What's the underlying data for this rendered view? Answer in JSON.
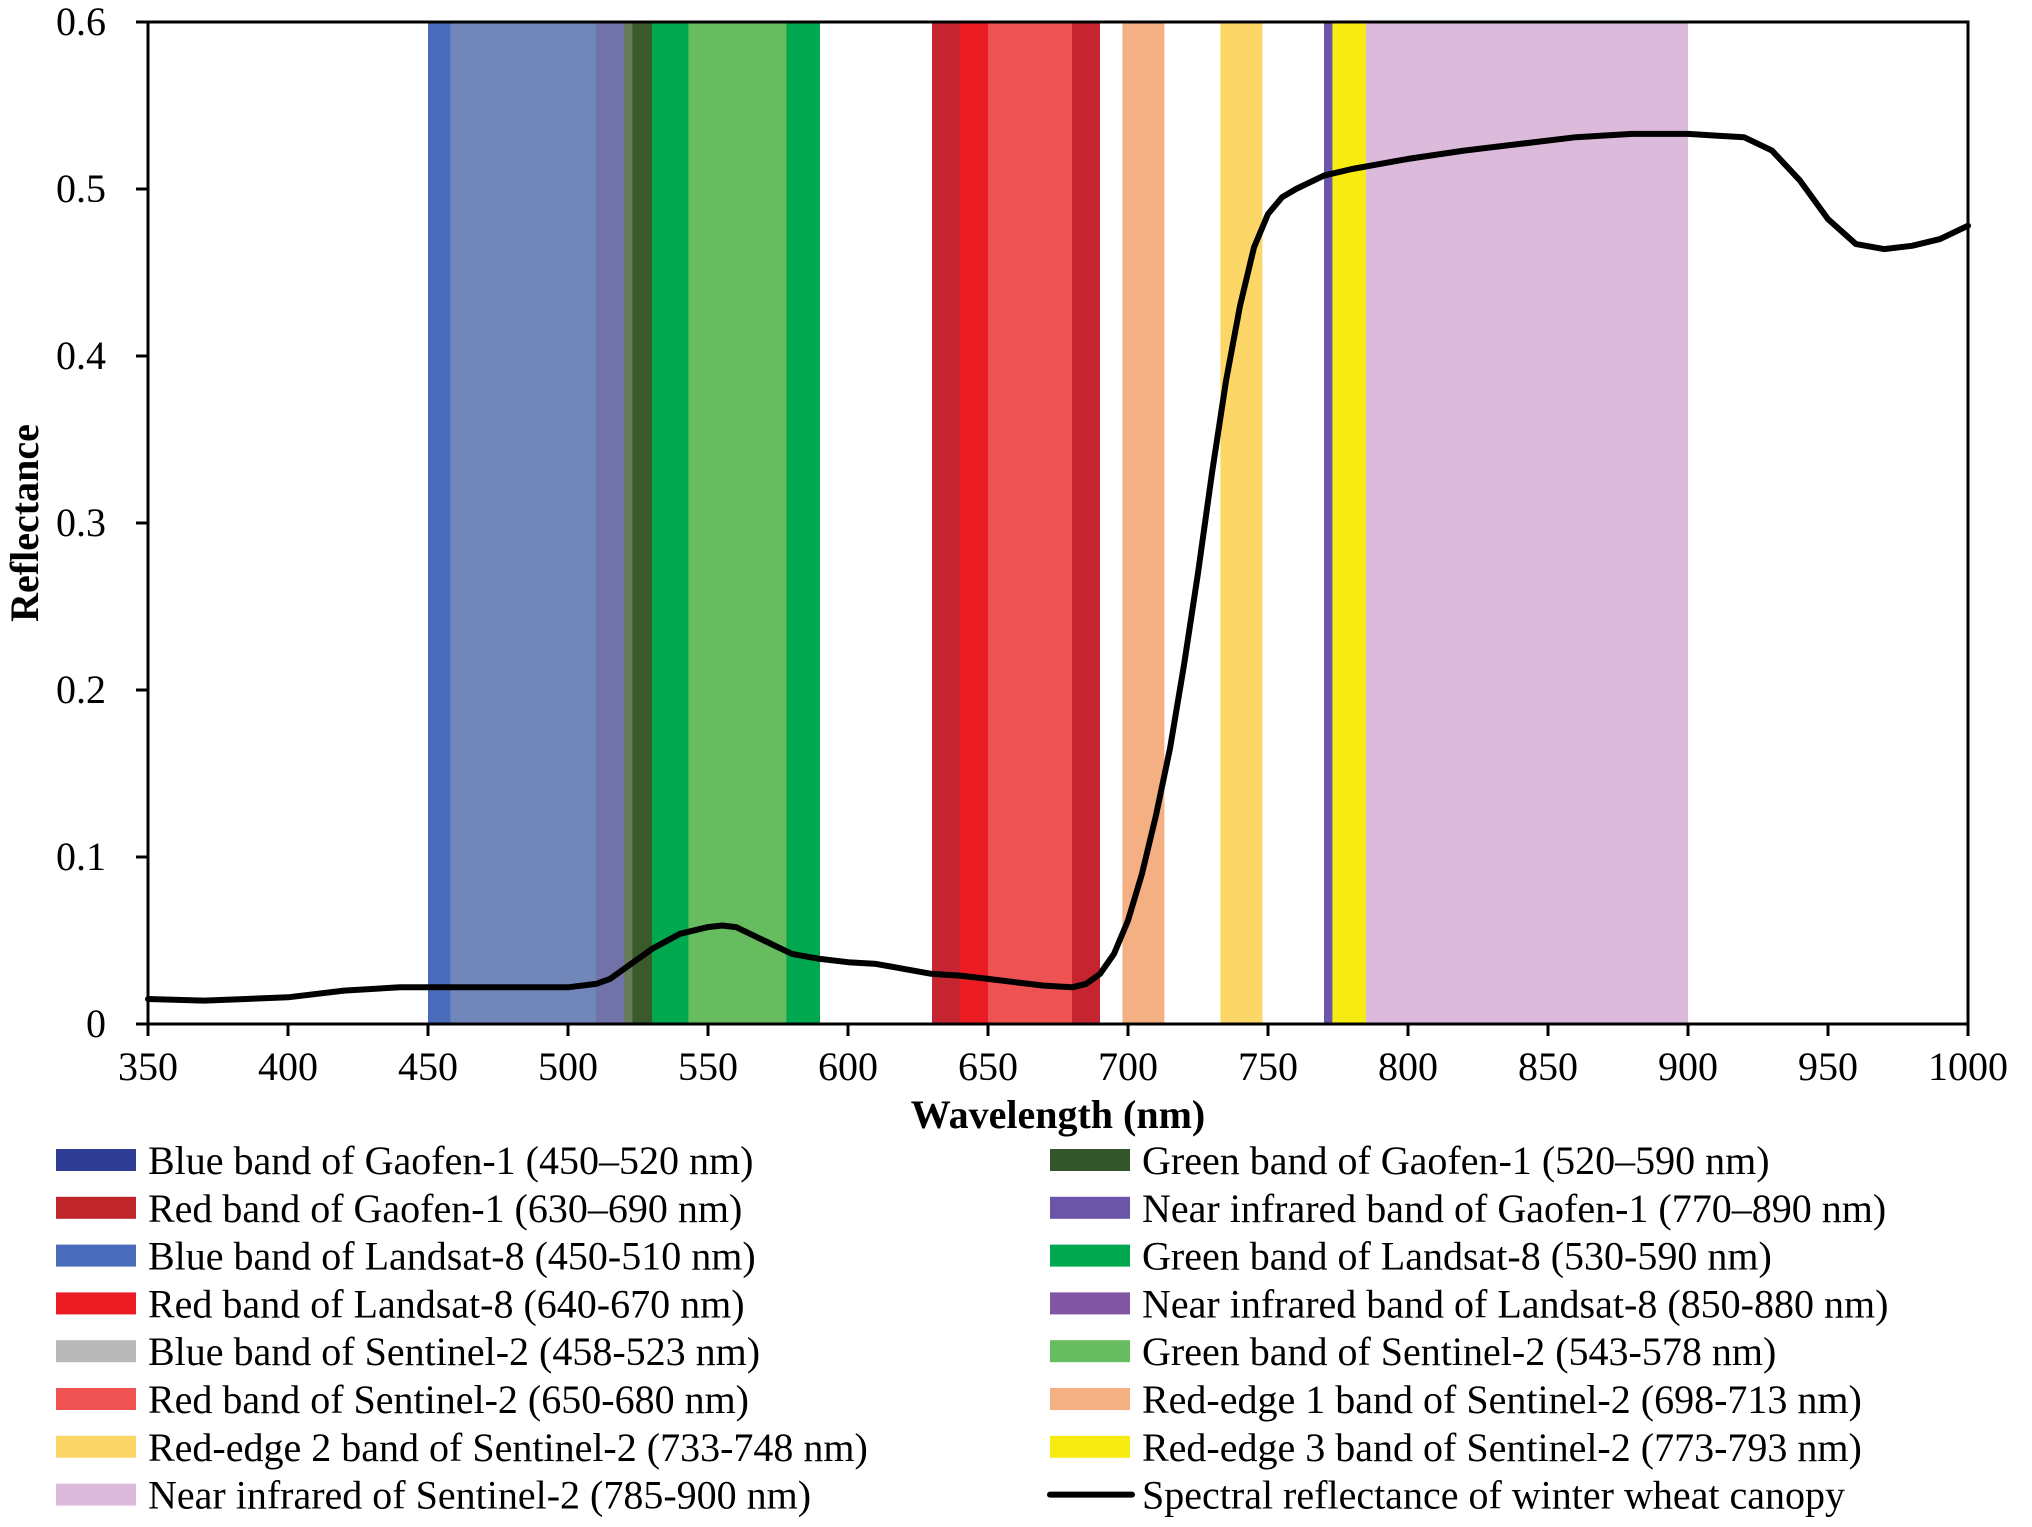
{
  "chart_data": {
    "type": "line",
    "title": "",
    "xlabel": "Wavelength (nm)",
    "ylabel": "Reflectance",
    "xlim": [
      350,
      1000
    ],
    "ylim": [
      0,
      0.6
    ],
    "x_ticks": [
      350,
      400,
      450,
      500,
      550,
      600,
      650,
      700,
      750,
      800,
      850,
      900,
      950,
      1000
    ],
    "y_ticks": [
      0,
      0.1,
      0.2,
      0.3,
      0.4,
      0.5,
      0.6
    ],
    "y_tick_labels": [
      "0",
      "0.1",
      "0.2",
      "0.3",
      "0.4",
      "0.5",
      "0.6"
    ],
    "grid": false,
    "bands": [
      {
        "range": [
          450,
          520
        ],
        "color": "#4a4d9e"
      },
      {
        "range": [
          520,
          590
        ],
        "color": "#3a5a2a"
      },
      {
        "range": [
          630,
          690
        ],
        "color": "#c42530"
      },
      {
        "range": [
          770,
          890
        ],
        "color": "#6a55a8"
      },
      {
        "range": [
          450,
          510
        ],
        "color": "#4a6cba"
      },
      {
        "range": [
          530,
          590
        ],
        "color": "#00a850"
      },
      {
        "range": [
          640,
          670
        ],
        "color": "#ec1c24"
      },
      {
        "range": [
          850,
          880
        ],
        "color": "#8255a5"
      },
      {
        "range": [
          458,
          523
        ],
        "color": "#b9b9b9",
        "opacity": 0.35
      },
      {
        "range": [
          543,
          578
        ],
        "color": "#66bc5e"
      },
      {
        "range": [
          650,
          680
        ],
        "color": "#ef5253"
      },
      {
        "range": [
          698,
          713
        ],
        "color": "#f4b083"
      },
      {
        "range": [
          733,
          748
        ],
        "color": "#fdd668"
      },
      {
        "range": [
          773,
          793
        ],
        "color": "#f7ec12"
      },
      {
        "range": [
          785,
          900
        ],
        "color": "#dcbadb"
      }
    ],
    "series": [
      {
        "name": "Spectral reflectance of winter wheat canopy",
        "color": "#000000",
        "x": [
          350,
          370,
          385,
          400,
          420,
          440,
          460,
          480,
          500,
          510,
          515,
          520,
          530,
          540,
          550,
          555,
          560,
          570,
          580,
          590,
          600,
          610,
          620,
          630,
          640,
          650,
          660,
          670,
          680,
          685,
          690,
          695,
          700,
          705,
          710,
          715,
          720,
          725,
          730,
          735,
          740,
          745,
          750,
          755,
          760,
          770,
          780,
          790,
          800,
          820,
          840,
          860,
          880,
          900,
          910,
          920,
          930,
          940,
          950,
          960,
          970,
          980,
          990,
          1000
        ],
        "y": [
          0.015,
          0.014,
          0.015,
          0.016,
          0.02,
          0.022,
          0.022,
          0.022,
          0.022,
          0.024,
          0.027,
          0.033,
          0.045,
          0.054,
          0.058,
          0.059,
          0.058,
          0.05,
          0.042,
          0.039,
          0.037,
          0.036,
          0.033,
          0.03,
          0.029,
          0.027,
          0.025,
          0.023,
          0.022,
          0.024,
          0.03,
          0.042,
          0.062,
          0.09,
          0.125,
          0.165,
          0.215,
          0.27,
          0.33,
          0.385,
          0.43,
          0.465,
          0.485,
          0.495,
          0.5,
          0.508,
          0.512,
          0.515,
          0.518,
          0.523,
          0.527,
          0.531,
          0.533,
          0.533,
          0.532,
          0.531,
          0.523,
          0.505,
          0.482,
          0.467,
          0.464,
          0.466,
          0.47,
          0.478
        ]
      }
    ],
    "legend": [
      {
        "label": "Blue band of Gaofen-1 (450–520 nm)",
        "color": "#2e3c93",
        "kind": "patch"
      },
      {
        "label": "Green band of Gaofen-1 (520–590 nm)",
        "color": "#34552a",
        "kind": "patch"
      },
      {
        "label": "Red band of Gaofen-1 (630–690 nm)",
        "color": "#c0252b",
        "kind": "patch"
      },
      {
        "label": "Near infrared band of Gaofen-1 (770–890 nm)",
        "color": "#6a55a8",
        "kind": "patch"
      },
      {
        "label": "Blue band of Landsat-8 (450-510 nm)",
        "color": "#4a6cba",
        "kind": "patch"
      },
      {
        "label": "Green band of Landsat-8 (530-590 nm)",
        "color": "#00a850",
        "kind": "patch"
      },
      {
        "label": "Red band of Landsat-8 (640-670 nm)",
        "color": "#ec1c24",
        "kind": "patch"
      },
      {
        "label": "Near infrared band of Landsat-8 (850-880 nm)",
        "color": "#8255a5",
        "kind": "patch"
      },
      {
        "label": "Blue band of Sentinel-2 (458-523 nm)",
        "color": "#b9b9b9",
        "kind": "patch"
      },
      {
        "label": "Green band of Sentinel-2 (543-578 nm)",
        "color": "#66bc5e",
        "kind": "patch"
      },
      {
        "label": "Red band of Sentinel-2 (650-680 nm)",
        "color": "#ef5253",
        "kind": "patch"
      },
      {
        "label": "Red-edge 1 band of Sentinel-2 (698-713 nm)",
        "color": "#f4b083",
        "kind": "patch"
      },
      {
        "label": "Red-edge 2 band of Sentinel-2 (733-748 nm)",
        "color": "#fdd668",
        "kind": "patch"
      },
      {
        "label": "Red-edge 3 band of Sentinel-2 (773-793 nm)",
        "color": "#f7ec12",
        "kind": "patch"
      },
      {
        "label": "Near infrared of Sentinel-2 (785-900 nm)",
        "color": "#dcbadb",
        "kind": "patch"
      },
      {
        "label": "Spectral reflectance of winter wheat canopy",
        "color": "#000000",
        "kind": "line"
      }
    ]
  }
}
